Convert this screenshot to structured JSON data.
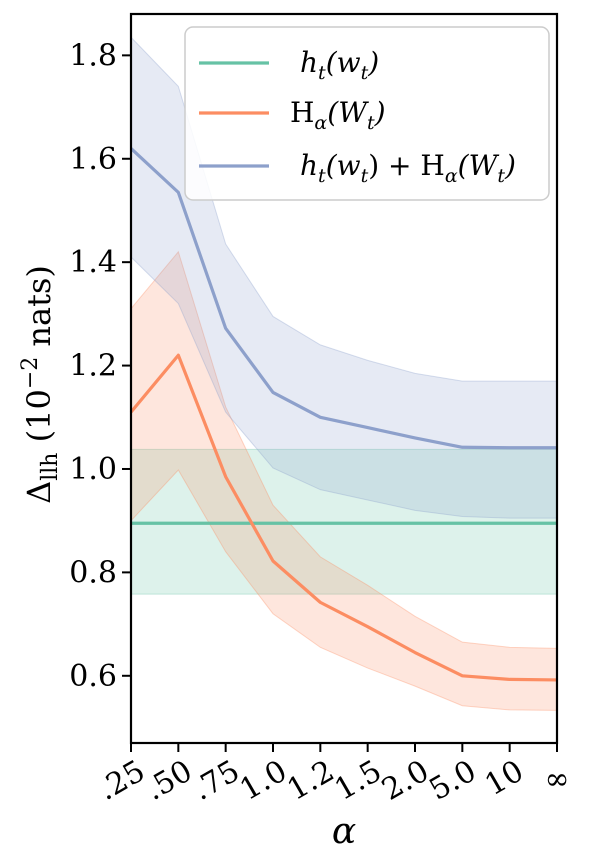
{
  "chart_data": {
    "type": "line",
    "categories": [
      ".25",
      ".50",
      ".75",
      "1.0",
      "1.2",
      "1.5",
      "2.0",
      "5.0",
      "10",
      "∞"
    ],
    "xlabel": "α",
    "ylabel_main": "Δ",
    "ylabel_sub": "llh",
    "ylabel_unit_open": " (10",
    "ylabel_unit_exp": "−2",
    "ylabel_unit_close": " nats)",
    "ylim": [
      0.47,
      1.88
    ],
    "yticks": [
      "0.6",
      "0.8",
      "1.0",
      "1.2",
      "1.4",
      "1.6",
      "1.8"
    ],
    "legend_position": "top-right",
    "series": [
      {
        "name": "h_t(w_t)",
        "color": "#66c2a5",
        "values": [
          0.895,
          0.895,
          0.895,
          0.895,
          0.895,
          0.895,
          0.895,
          0.895,
          0.895,
          0.895
        ],
        "lower": [
          0.758,
          0.758,
          0.758,
          0.758,
          0.758,
          0.758,
          0.758,
          0.758,
          0.758,
          0.758
        ],
        "upper": [
          1.038,
          1.038,
          1.038,
          1.038,
          1.038,
          1.038,
          1.038,
          1.038,
          1.038,
          1.038
        ]
      },
      {
        "name": "H_α(W_t)",
        "color": "#fc8d62",
        "values": [
          1.11,
          1.22,
          0.985,
          0.822,
          0.742,
          0.695,
          0.645,
          0.6,
          0.593,
          0.592
        ],
        "lower": [
          0.9,
          0.998,
          0.84,
          0.72,
          0.655,
          0.615,
          0.58,
          0.542,
          0.534,
          0.533
        ],
        "upper": [
          1.31,
          1.42,
          1.12,
          0.93,
          0.83,
          0.775,
          0.715,
          0.665,
          0.655,
          0.653
        ]
      },
      {
        "name": "h_t(w_t) + H_α(W_t)",
        "color": "#8da0cb",
        "values": [
          1.62,
          1.535,
          1.272,
          1.148,
          1.1,
          1.08,
          1.06,
          1.042,
          1.041,
          1.041
        ],
        "lower": [
          1.41,
          1.32,
          1.11,
          1.002,
          0.96,
          0.94,
          0.92,
          0.908,
          0.905,
          0.905
        ],
        "upper": [
          1.835,
          1.74,
          1.435,
          1.295,
          1.24,
          1.21,
          1.185,
          1.17,
          1.17,
          1.17
        ]
      }
    ],
    "legend_labels": [
      {
        "a": "h",
        "a_sub": "t",
        "b": "(w",
        "b_sub": "t",
        "c": ")"
      },
      {
        "a": "H",
        "a_sub": "α",
        "b": "(W",
        "b_sub": "t",
        "c": ")"
      },
      {
        "a": "h",
        "a_sub": "t",
        "b": "(w",
        "b_sub": "t",
        "c": ") + H",
        "c_sub": "α",
        "d": "(W",
        "d_sub": "t",
        "e": ")"
      }
    ]
  }
}
